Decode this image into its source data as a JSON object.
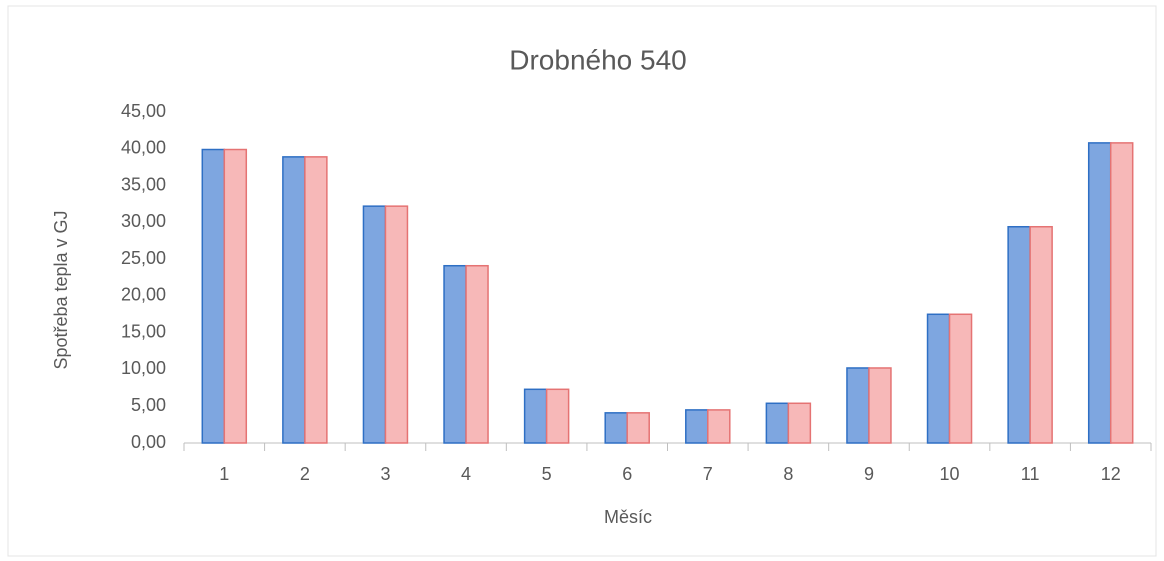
{
  "chart_data": {
    "type": "bar",
    "title": "Drobného 540",
    "x_label": "Měsíc",
    "y_label": "Spotřeba tepla v GJ",
    "categories": [
      "1",
      "2",
      "3",
      "4",
      "5",
      "6",
      "7",
      "8",
      "9",
      "10",
      "11",
      "12"
    ],
    "series": [
      {
        "color": "#7ea6e0",
        "values": [
          39.9,
          38.9,
          32.2,
          24.1,
          7.3,
          4.1,
          4.5,
          5.4,
          10.2,
          17.5,
          29.4,
          40.8
        ]
      },
      {
        "color": "#f7b8b8",
        "values": [
          39.9,
          38.9,
          32.2,
          24.1,
          7.3,
          4.1,
          4.5,
          5.4,
          10.2,
          17.5,
          29.4,
          40.8
        ]
      }
    ],
    "ylim": [
      0,
      45
    ],
    "yticks": [
      {
        "value": 0,
        "label": "0,00"
      },
      {
        "value": 5,
        "label": "5,00"
      },
      {
        "value": 10,
        "label": "10,00"
      },
      {
        "value": 15,
        "label": "15,00"
      },
      {
        "value": 20,
        "label": "20,00"
      },
      {
        "value": 25,
        "label": "25,00"
      },
      {
        "value": 30,
        "label": "30,00"
      },
      {
        "value": 35,
        "label": "35,00"
      },
      {
        "value": 40,
        "label": "40,00"
      },
      {
        "value": 45,
        "label": "45,00"
      }
    ],
    "grid": false
  }
}
